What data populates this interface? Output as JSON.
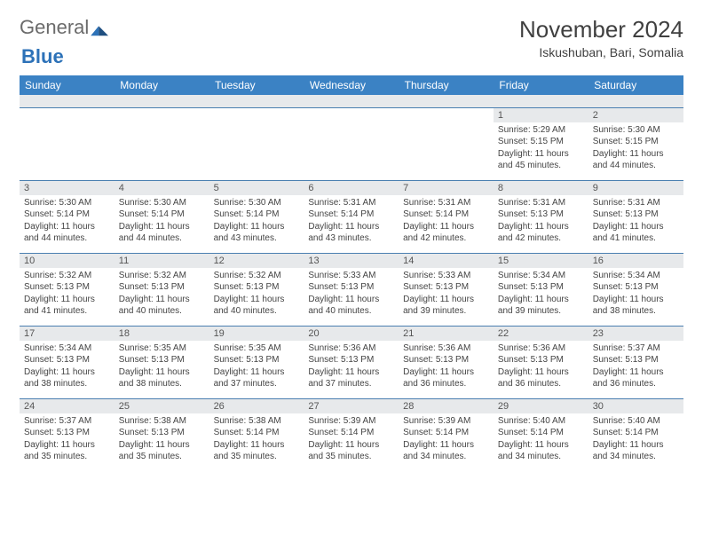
{
  "logo": {
    "general": "General",
    "blue": "Blue"
  },
  "title": "November 2024",
  "location": "Iskushuban, Bari, Somalia",
  "colors": {
    "header_bg": "#3b82c4",
    "header_text": "#ffffff",
    "daynum_bg": "#e7e9eb",
    "border": "#4a7fb0",
    "body_text": "#444444",
    "page_bg": "#ffffff"
  },
  "day_headers": [
    "Sunday",
    "Monday",
    "Tuesday",
    "Wednesday",
    "Thursday",
    "Friday",
    "Saturday"
  ],
  "weeks": [
    [
      {
        "empty": true
      },
      {
        "empty": true
      },
      {
        "empty": true
      },
      {
        "empty": true
      },
      {
        "empty": true
      },
      {
        "num": "1",
        "sunrise": "5:29 AM",
        "sunset": "5:15 PM",
        "daylight": "11 hours and 45 minutes."
      },
      {
        "num": "2",
        "sunrise": "5:30 AM",
        "sunset": "5:15 PM",
        "daylight": "11 hours and 44 minutes."
      }
    ],
    [
      {
        "num": "3",
        "sunrise": "5:30 AM",
        "sunset": "5:14 PM",
        "daylight": "11 hours and 44 minutes."
      },
      {
        "num": "4",
        "sunrise": "5:30 AM",
        "sunset": "5:14 PM",
        "daylight": "11 hours and 44 minutes."
      },
      {
        "num": "5",
        "sunrise": "5:30 AM",
        "sunset": "5:14 PM",
        "daylight": "11 hours and 43 minutes."
      },
      {
        "num": "6",
        "sunrise": "5:31 AM",
        "sunset": "5:14 PM",
        "daylight": "11 hours and 43 minutes."
      },
      {
        "num": "7",
        "sunrise": "5:31 AM",
        "sunset": "5:14 PM",
        "daylight": "11 hours and 42 minutes."
      },
      {
        "num": "8",
        "sunrise": "5:31 AM",
        "sunset": "5:13 PM",
        "daylight": "11 hours and 42 minutes."
      },
      {
        "num": "9",
        "sunrise": "5:31 AM",
        "sunset": "5:13 PM",
        "daylight": "11 hours and 41 minutes."
      }
    ],
    [
      {
        "num": "10",
        "sunrise": "5:32 AM",
        "sunset": "5:13 PM",
        "daylight": "11 hours and 41 minutes."
      },
      {
        "num": "11",
        "sunrise": "5:32 AM",
        "sunset": "5:13 PM",
        "daylight": "11 hours and 40 minutes."
      },
      {
        "num": "12",
        "sunrise": "5:32 AM",
        "sunset": "5:13 PM",
        "daylight": "11 hours and 40 minutes."
      },
      {
        "num": "13",
        "sunrise": "5:33 AM",
        "sunset": "5:13 PM",
        "daylight": "11 hours and 40 minutes."
      },
      {
        "num": "14",
        "sunrise": "5:33 AM",
        "sunset": "5:13 PM",
        "daylight": "11 hours and 39 minutes."
      },
      {
        "num": "15",
        "sunrise": "5:34 AM",
        "sunset": "5:13 PM",
        "daylight": "11 hours and 39 minutes."
      },
      {
        "num": "16",
        "sunrise": "5:34 AM",
        "sunset": "5:13 PM",
        "daylight": "11 hours and 38 minutes."
      }
    ],
    [
      {
        "num": "17",
        "sunrise": "5:34 AM",
        "sunset": "5:13 PM",
        "daylight": "11 hours and 38 minutes."
      },
      {
        "num": "18",
        "sunrise": "5:35 AM",
        "sunset": "5:13 PM",
        "daylight": "11 hours and 38 minutes."
      },
      {
        "num": "19",
        "sunrise": "5:35 AM",
        "sunset": "5:13 PM",
        "daylight": "11 hours and 37 minutes."
      },
      {
        "num": "20",
        "sunrise": "5:36 AM",
        "sunset": "5:13 PM",
        "daylight": "11 hours and 37 minutes."
      },
      {
        "num": "21",
        "sunrise": "5:36 AM",
        "sunset": "5:13 PM",
        "daylight": "11 hours and 36 minutes."
      },
      {
        "num": "22",
        "sunrise": "5:36 AM",
        "sunset": "5:13 PM",
        "daylight": "11 hours and 36 minutes."
      },
      {
        "num": "23",
        "sunrise": "5:37 AM",
        "sunset": "5:13 PM",
        "daylight": "11 hours and 36 minutes."
      }
    ],
    [
      {
        "num": "24",
        "sunrise": "5:37 AM",
        "sunset": "5:13 PM",
        "daylight": "11 hours and 35 minutes."
      },
      {
        "num": "25",
        "sunrise": "5:38 AM",
        "sunset": "5:13 PM",
        "daylight": "11 hours and 35 minutes."
      },
      {
        "num": "26",
        "sunrise": "5:38 AM",
        "sunset": "5:14 PM",
        "daylight": "11 hours and 35 minutes."
      },
      {
        "num": "27",
        "sunrise": "5:39 AM",
        "sunset": "5:14 PM",
        "daylight": "11 hours and 35 minutes."
      },
      {
        "num": "28",
        "sunrise": "5:39 AM",
        "sunset": "5:14 PM",
        "daylight": "11 hours and 34 minutes."
      },
      {
        "num": "29",
        "sunrise": "5:40 AM",
        "sunset": "5:14 PM",
        "daylight": "11 hours and 34 minutes."
      },
      {
        "num": "30",
        "sunrise": "5:40 AM",
        "sunset": "5:14 PM",
        "daylight": "11 hours and 34 minutes."
      }
    ]
  ],
  "labels": {
    "sunrise_prefix": "Sunrise: ",
    "sunset_prefix": "Sunset: ",
    "daylight_prefix": "Daylight: "
  }
}
